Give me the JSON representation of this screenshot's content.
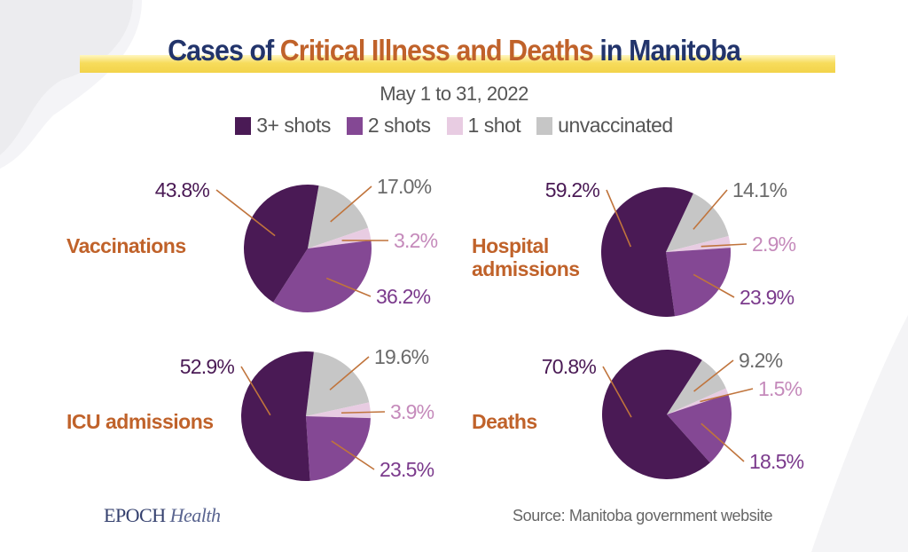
{
  "header": {
    "title_part1": "Cases of ",
    "title_part2": "Critical Illness and Deaths",
    "title_part3": " in Manitoba",
    "subtitle": "May 1 to 31, 2022"
  },
  "legend": [
    {
      "label": "3+ shots",
      "color": "#4a1a55"
    },
    {
      "label": "2 shots",
      "color": "#844894"
    },
    {
      "label": "1 shot",
      "color": "#e8cce2"
    },
    {
      "label": "unvaccinated",
      "color": "#c6c6c6"
    }
  ],
  "label_colors": {
    "3+ shots": "#4a1a55",
    "2 shots": "#7b3a8c",
    "1 shot": "#c58abb",
    "unvaccinated": "#6a6a6a",
    "leader": "#c0743c"
  },
  "chart_data": [
    {
      "type": "pie",
      "title": "Vaccinations",
      "categories": [
        "3+ shots",
        "2 shots",
        "1 shot",
        "unvaccinated"
      ],
      "values": [
        43.8,
        36.2,
        3.2,
        17.0
      ],
      "labels": [
        "43.8%",
        "36.2%",
        "3.2%",
        "17.0%"
      ]
    },
    {
      "type": "pie",
      "title_lines": [
        "Hospital",
        "admissions"
      ],
      "title": "Hospital admissions",
      "categories": [
        "3+ shots",
        "2 shots",
        "1 shot",
        "unvaccinated"
      ],
      "values": [
        59.2,
        23.9,
        2.9,
        14.1
      ],
      "labels": [
        "59.2%",
        "23.9%",
        "2.9%",
        "14.1%"
      ]
    },
    {
      "type": "pie",
      "title": "ICU admissions",
      "categories": [
        "3+ shots",
        "2 shots",
        "1 shot",
        "unvaccinated"
      ],
      "values": [
        52.9,
        23.5,
        3.9,
        19.6
      ],
      "labels": [
        "52.9%",
        "23.5%",
        "3.9%",
        "19.6%"
      ]
    },
    {
      "type": "pie",
      "title": "Deaths",
      "categories": [
        "3+ shots",
        "2 shots",
        "1 shot",
        "unvaccinated"
      ],
      "values": [
        70.8,
        18.5,
        1.5,
        9.2
      ],
      "labels": [
        "70.8%",
        "18.5%",
        "1.5%",
        "9.2%"
      ]
    }
  ],
  "footer": {
    "brand_part1": "EPOCH",
    "brand_part2": "Health",
    "source": "Source: Manitoba government website"
  }
}
